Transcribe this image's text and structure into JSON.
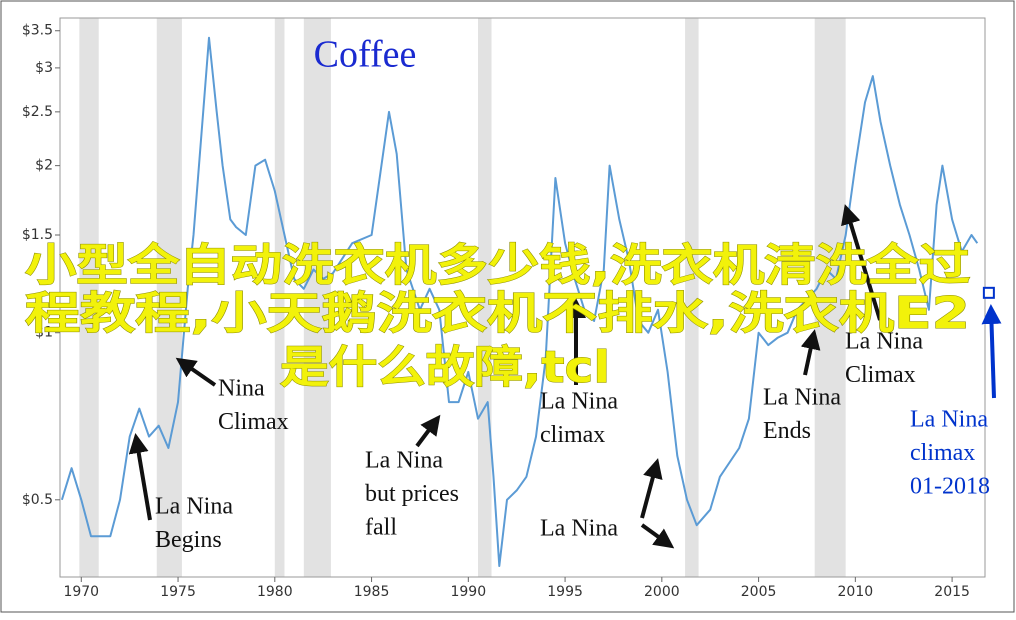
{
  "chart_data": {
    "type": "line",
    "title": "Coffee",
    "log_scale": true,
    "xlim": [
      1968.9,
      2016.7
    ],
    "xticks": [
      1970,
      1975,
      1980,
      1985,
      1990,
      1995,
      2000,
      2005,
      2010,
      2015
    ],
    "ylim": [
      0.363,
      3.69
    ],
    "yticks": [
      {
        "value": 0.5,
        "label": "$0.5"
      },
      {
        "value": 1,
        "label": "$1"
      },
      {
        "value": 1.5,
        "label": "$1.5"
      },
      {
        "value": 2,
        "label": "$2"
      },
      {
        "value": 2.5,
        "label": "$2.5"
      },
      {
        "value": 3,
        "label": "$3"
      },
      {
        "value": 3.5,
        "label": "$3.5"
      }
    ],
    "shaded_periods": [
      [
        1969.9,
        1970.9
      ],
      [
        1973.9,
        1975.2
      ],
      [
        1980,
        1980.5
      ],
      [
        1981.5,
        1982.9
      ],
      [
        1990.5,
        1991.2
      ],
      [
        2001.2,
        2001.9
      ],
      [
        2007.9,
        2009.5
      ]
    ],
    "x": [
      1969,
      1969.5,
      1970,
      1970.5,
      1971.5,
      1972,
      1972.5,
      1973,
      1973.5,
      1974,
      1974.5,
      1975,
      1975.5,
      1975.8,
      1976.3,
      1976.6,
      1977,
      1977.3,
      1977.7,
      1978,
      1978.5,
      1979,
      1979.5,
      1980,
      1980.5,
      1981,
      1981.5,
      1982,
      1982.5,
      1983,
      1984,
      1985,
      1985.9,
      1986.3,
      1986.8,
      1987.5,
      1988,
      1988.5,
      1989,
      1989.5,
      1990,
      1990.5,
      1991,
      1991.3,
      1991.6,
      1992,
      1992.5,
      1993,
      1993.5,
      1994,
      1994.5,
      1995,
      1995.5,
      1996,
      1996.5,
      1997,
      1997.3,
      1997.8,
      1998.3,
      1998.8,
      1999.3,
      1999.8,
      2000.3,
      2000.8,
      2001.3,
      2001.8,
      2002.5,
      2003,
      2004,
      2004.5,
      2005,
      2005.5,
      2006,
      2006.5,
      2007,
      2008,
      2008.5,
      2009,
      2009.5,
      2010,
      2010.5,
      2010.9,
      2011.3,
      2011.8,
      2012.3,
      2012.8,
      2013.3,
      2013.8,
      2014.2,
      2014.5,
      2015,
      2015.5,
      2016,
      2016.3
    ],
    "series": [
      {
        "name": "Coffee",
        "color": "#5b9bd5",
        "values": [
          0.5,
          0.57,
          0.5,
          0.43,
          0.43,
          0.5,
          0.65,
          0.73,
          0.65,
          0.68,
          0.62,
          0.75,
          1.2,
          1.5,
          2.5,
          3.4,
          2.5,
          2.0,
          1.6,
          1.55,
          1.5,
          2.0,
          2.05,
          1.8,
          1.5,
          1.25,
          1.2,
          1.3,
          1.25,
          1.28,
          1.45,
          1.5,
          2.5,
          2.1,
          1.3,
          1.1,
          1.2,
          1.1,
          0.75,
          0.75,
          0.85,
          0.7,
          0.75,
          0.55,
          0.38,
          0.5,
          0.52,
          0.55,
          0.65,
          0.9,
          1.9,
          1.45,
          1.25,
          1.1,
          1.05,
          1.3,
          2.0,
          1.6,
          1.35,
          1.05,
          1.0,
          1.1,
          0.85,
          0.6,
          0.5,
          0.45,
          0.48,
          0.55,
          0.62,
          0.7,
          1.0,
          0.95,
          0.98,
          1.0,
          1.1,
          1.2,
          1.3,
          1.25,
          1.5,
          2.0,
          2.6,
          2.9,
          2.4,
          2.0,
          1.7,
          1.5,
          1.3,
          1.1,
          1.7,
          2.0,
          1.6,
          1.4,
          1.5,
          1.45
        ]
      }
    ],
    "marker": {
      "x": 2016.9,
      "value": 1.18,
      "color": "#0033cc"
    },
    "annotations": [
      {
        "lines": [
          "La Nina",
          "Begins"
        ]
      },
      {
        "lines": [
          "Nina",
          "Climax"
        ]
      },
      {
        "lines": [
          "La Nina",
          "but prices",
          "fall"
        ]
      },
      {
        "lines": [
          "La Nina",
          "climax"
        ]
      },
      {
        "lines": [
          "La Nina"
        ]
      },
      {
        "lines": [
          "La Nina",
          "Ends"
        ]
      },
      {
        "lines": [
          "La Nina",
          "Climax"
        ]
      },
      {
        "lines": [
          "La Nina",
          "climax",
          "01-2018"
        ],
        "color": "#0033cc"
      }
    ],
    "overlay_text": [
      "小型全自动洗衣机多少钱,洗衣机清洗全过",
      "程教程,小天鹅洗衣机不排水,洗衣机E2",
      "是什么故障,tcl"
    ]
  }
}
